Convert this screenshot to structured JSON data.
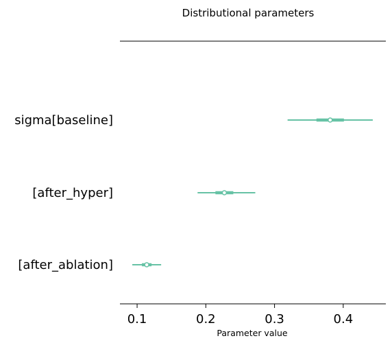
{
  "chart_data": {
    "type": "forest",
    "title": "Distributional parameters",
    "xlabel": "Parameter value",
    "xlim": [
      0.075,
      0.462
    ],
    "xticks": [
      0.1,
      0.2,
      0.3,
      0.4
    ],
    "xtick_labels": [
      "0.1",
      "0.2",
      "0.3",
      "0.4"
    ],
    "grid": false,
    "color": "#66c2a5",
    "categories": [
      "sigma[baseline]",
      "[after_hyper]",
      "[after_ablation]"
    ],
    "series": [
      {
        "name": "sigma[baseline]",
        "mean": 0.381,
        "iqr": [
          0.361,
          0.401
        ],
        "hdi": [
          0.319,
          0.443
        ]
      },
      {
        "name": "[after_hyper]",
        "mean": 0.227,
        "iqr": [
          0.214,
          0.24
        ],
        "hdi": [
          0.188,
          0.272
        ]
      },
      {
        "name": "[after_ablation]",
        "mean": 0.114,
        "iqr": [
          0.107,
          0.121
        ],
        "hdi": [
          0.093,
          0.135
        ]
      }
    ]
  }
}
